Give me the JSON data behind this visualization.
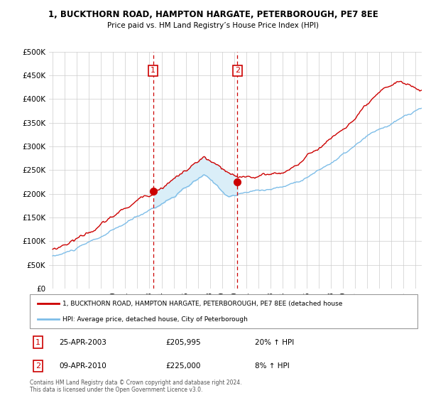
{
  "title": "1, BUCKTHORN ROAD, HAMPTON HARGATE, PETERBOROUGH, PE7 8EE",
  "subtitle": "Price paid vs. HM Land Registry’s House Price Index (HPI)",
  "legend_line1": "1, BUCKTHORN ROAD, HAMPTON HARGATE, PETERBOROUGH, PE7 8EE (detached house",
  "legend_line2": "HPI: Average price, detached house, City of Peterborough",
  "footer": "Contains HM Land Registry data © Crown copyright and database right 2024.\nThis data is licensed under the Open Government Licence v3.0.",
  "sale1_date": "25-APR-2003",
  "sale1_price": 205995,
  "sale1_pct": "20% ↑ HPI",
  "sale1_year": 2003.31,
  "sale2_date": "09-APR-2010",
  "sale2_price": 225000,
  "sale2_pct": "8% ↑ HPI",
  "sale2_year": 2010.27,
  "ylim": [
    0,
    500000
  ],
  "yticks": [
    0,
    50000,
    100000,
    150000,
    200000,
    250000,
    300000,
    350000,
    400000,
    450000,
    500000
  ],
  "hpi_color": "#7dbde8",
  "property_color": "#cc0000",
  "fill_color": "#daeef8",
  "vline_color": "#cc0000",
  "background_color": "#ffffff",
  "grid_color": "#cccccc"
}
